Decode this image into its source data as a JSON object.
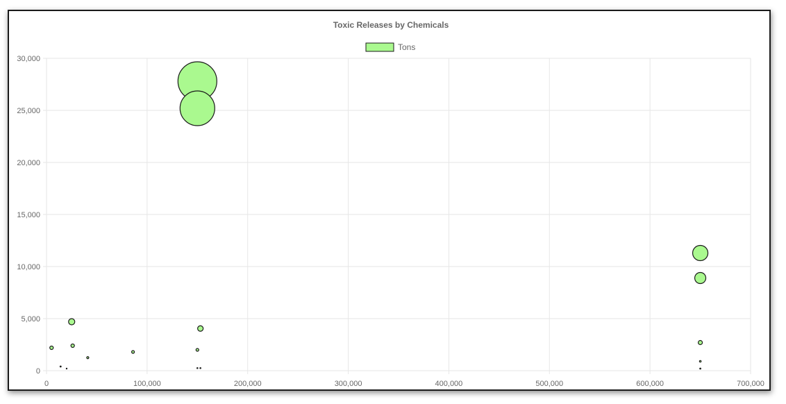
{
  "chart_data": {
    "type": "bubble",
    "title": "Toxic Releases by Chemicals",
    "xlabel": "",
    "ylabel": "",
    "xlim": [
      0,
      700000
    ],
    "ylim": [
      0,
      30000
    ],
    "x_ticks": [
      "0",
      "100,000",
      "200,000",
      "300,000",
      "400,000",
      "500,000",
      "600,000",
      "700,000"
    ],
    "y_ticks": [
      "0",
      "5,000",
      "10,000",
      "15,000",
      "20,000",
      "25,000",
      "30,000"
    ],
    "grid": true,
    "legend_position": "top",
    "colors": {
      "fill": "#aaf98f",
      "stroke": "#1a1a1a",
      "grid": "#e6e6e6",
      "text": "#666666"
    },
    "series": [
      {
        "name": "Tons",
        "points": [
          {
            "x": 150000,
            "y": 27800,
            "r": 28
          },
          {
            "x": 150000,
            "y": 25200,
            "r": 25
          },
          {
            "x": 650000,
            "y": 11300,
            "r": 11
          },
          {
            "x": 650000,
            "y": 8900,
            "r": 8
          },
          {
            "x": 25000,
            "y": 4700,
            "r": 4.5
          },
          {
            "x": 153000,
            "y": 4050,
            "r": 4
          },
          {
            "x": 5000,
            "y": 2200,
            "r": 2.5
          },
          {
            "x": 26000,
            "y": 2400,
            "r": 2.5
          },
          {
            "x": 86000,
            "y": 1800,
            "r": 2
          },
          {
            "x": 150000,
            "y": 2000,
            "r": 2
          },
          {
            "x": 650000,
            "y": 2700,
            "r": 3
          },
          {
            "x": 41000,
            "y": 1250,
            "r": 1.5
          },
          {
            "x": 650000,
            "y": 900,
            "r": 1.2
          },
          {
            "x": 14000,
            "y": 400,
            "r": 0.8
          },
          {
            "x": 20000,
            "y": 200,
            "r": 0.6
          },
          {
            "x": 150000,
            "y": 250,
            "r": 0.7
          },
          {
            "x": 153000,
            "y": 250,
            "r": 0.7
          },
          {
            "x": 650000,
            "y": 200,
            "r": 0.8
          }
        ]
      }
    ]
  }
}
